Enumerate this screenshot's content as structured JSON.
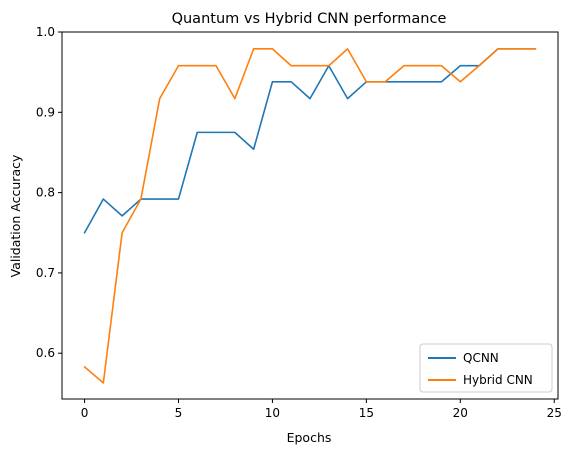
{
  "chart_data": {
    "type": "line",
    "title": "Quantum vs Hybrid CNN performance",
    "xlabel": "Epochs",
    "ylabel": "Validation Accuracy",
    "xlim": [
      -1.2,
      25.2
    ],
    "ylim": [
      0.543,
      1.0
    ],
    "xticks": [
      0,
      5,
      10,
      15,
      20,
      25
    ],
    "yticks": [
      0.6,
      0.7,
      0.8,
      0.9,
      1.0
    ],
    "xtick_labels": [
      "0",
      "5",
      "10",
      "15",
      "20",
      "25"
    ],
    "ytick_labels": [
      "0.6",
      "0.7",
      "0.8",
      "0.9",
      "1.0"
    ],
    "grid": false,
    "legend_position": "lower right",
    "x": [
      0,
      1,
      2,
      3,
      4,
      5,
      6,
      7,
      8,
      9,
      10,
      11,
      12,
      13,
      14,
      15,
      16,
      17,
      18,
      19,
      20,
      21,
      22,
      23,
      24
    ],
    "series": [
      {
        "name": "QCNN",
        "color": "#1f77b4",
        "values": [
          0.75,
          0.792,
          0.771,
          0.792,
          0.792,
          0.792,
          0.875,
          0.875,
          0.875,
          0.854,
          0.938,
          0.938,
          0.917,
          0.958,
          0.917,
          0.938,
          0.938,
          0.938,
          0.938,
          0.938,
          0.958,
          0.958,
          0.979,
          0.979,
          0.979
        ]
      },
      {
        "name": "Hybrid CNN",
        "color": "#ff7f0e",
        "values": [
          0.583,
          0.563,
          0.75,
          0.792,
          0.917,
          0.958,
          0.958,
          0.958,
          0.917,
          0.979,
          0.979,
          0.958,
          0.958,
          0.958,
          0.979,
          0.938,
          0.938,
          0.958,
          0.958,
          0.958,
          0.938,
          0.958,
          0.979,
          0.979,
          0.979
        ]
      }
    ]
  }
}
